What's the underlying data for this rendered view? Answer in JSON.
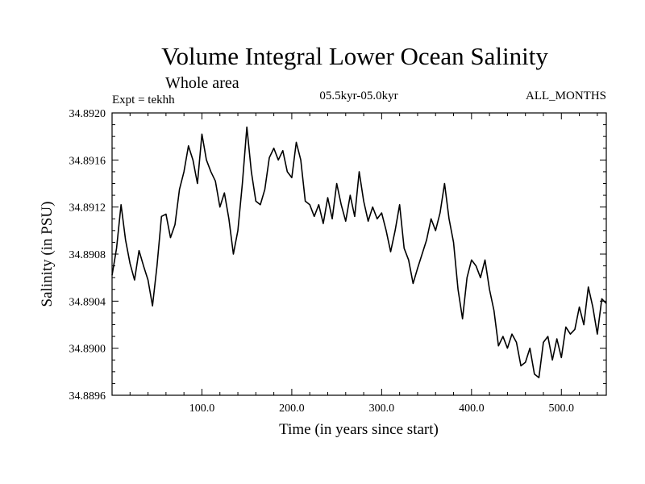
{
  "chart_data": {
    "type": "line",
    "title": "Volume Integral Lower Ocean Salinity",
    "subtitle": "Whole area",
    "experiment_label": "Expt = tekhh",
    "period_label": "05.5kyr-05.0kyr",
    "months_label": "ALL_MONTHS",
    "xlabel": "Time (in years since start)",
    "ylabel": "Salinity (in PSU)",
    "xlim": [
      0,
      550
    ],
    "ylim": [
      34.8896,
      34.892
    ],
    "x_ticks": [
      100,
      200,
      300,
      400,
      500
    ],
    "x_tick_labels": [
      "100.0",
      "200.0",
      "300.0",
      "400.0",
      "500.0"
    ],
    "y_ticks": [
      34.8896,
      34.89,
      34.8904,
      34.8908,
      34.8912,
      34.8916,
      34.892
    ],
    "y_tick_labels": [
      "34.8896",
      "34.8900",
      "34.8904",
      "34.8908",
      "34.8912",
      "34.8916",
      "34.8920"
    ],
    "grid": false,
    "series": [
      {
        "name": "salinity",
        "x": [
          0,
          5,
          10,
          15,
          20,
          25,
          30,
          35,
          40,
          45,
          50,
          55,
          60,
          65,
          70,
          75,
          80,
          85,
          90,
          95,
          100,
          105,
          110,
          115,
          120,
          125,
          130,
          135,
          140,
          145,
          150,
          155,
          160,
          165,
          170,
          175,
          180,
          185,
          190,
          195,
          200,
          205,
          210,
          215,
          220,
          225,
          230,
          235,
          240,
          245,
          250,
          255,
          260,
          265,
          270,
          275,
          280,
          285,
          290,
          295,
          300,
          305,
          310,
          315,
          320,
          325,
          330,
          335,
          340,
          345,
          350,
          355,
          360,
          365,
          370,
          375,
          380,
          385,
          390,
          395,
          400,
          405,
          410,
          415,
          420,
          425,
          430,
          435,
          440,
          445,
          450,
          455,
          460,
          465,
          470,
          475,
          480,
          485,
          490,
          495,
          500,
          505,
          510,
          515,
          520,
          525,
          530,
          535,
          540,
          545,
          550
        ],
        "values": [
          34.89062,
          34.89085,
          34.89122,
          34.89092,
          34.89072,
          34.89058,
          34.89083,
          34.8907,
          34.89058,
          34.89036,
          34.8907,
          34.89112,
          34.89114,
          34.89094,
          34.89105,
          34.89135,
          34.8915,
          34.89172,
          34.8916,
          34.8914,
          34.89182,
          34.8916,
          34.8915,
          34.89142,
          34.8912,
          34.89132,
          34.8911,
          34.8908,
          34.891,
          34.8914,
          34.89188,
          34.8915,
          34.89125,
          34.89122,
          34.89135,
          34.89162,
          34.8917,
          34.8916,
          34.89168,
          34.8915,
          34.89145,
          34.89175,
          34.8916,
          34.89125,
          34.89122,
          34.89112,
          34.89122,
          34.89106,
          34.89128,
          34.8911,
          34.8914,
          34.89122,
          34.89108,
          34.8913,
          34.89112,
          34.8915,
          34.89125,
          34.89108,
          34.8912,
          34.8911,
          34.89115,
          34.891,
          34.89082,
          34.891,
          34.89122,
          34.89085,
          34.89075,
          34.89055,
          34.89068,
          34.8908,
          34.89092,
          34.8911,
          34.891,
          34.89115,
          34.8914,
          34.8911,
          34.8909,
          34.8905,
          34.89025,
          34.8906,
          34.89075,
          34.8907,
          34.8906,
          34.89075,
          34.8905,
          34.89032,
          34.89002,
          34.8901,
          34.89,
          34.89012,
          34.89005,
          34.88985,
          34.88988,
          34.89,
          34.88978,
          34.88975,
          34.89005,
          34.8901,
          34.8899,
          34.89008,
          34.88992,
          34.89018,
          34.89012,
          34.89016,
          34.89035,
          34.8902,
          34.89052,
          34.89035,
          34.89012,
          34.89042,
          34.89038
        ]
      }
    ]
  }
}
